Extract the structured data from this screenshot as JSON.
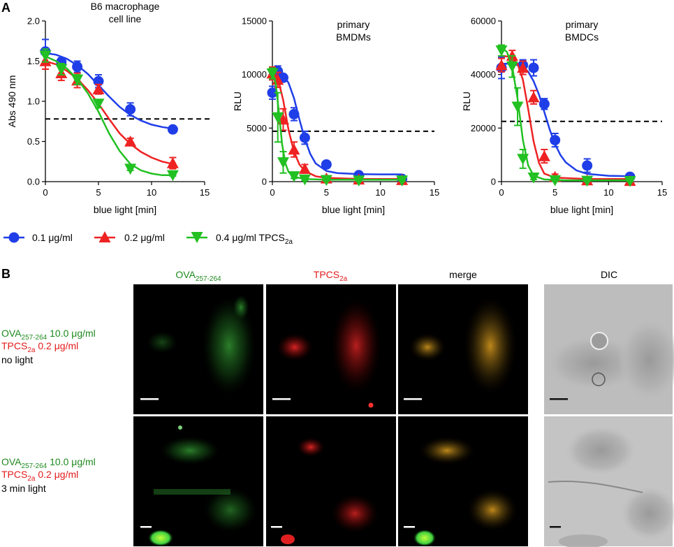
{
  "panel_a_letter": "A",
  "panel_b_letter": "B",
  "chart_data": [
    {
      "type": "line",
      "title": [
        "B6 macrophage",
        "cell line"
      ],
      "xlabel": "blue light [min]",
      "ylabel": "Abs 490 nm",
      "xlim": [
        0,
        15
      ],
      "ylim": [
        0,
        2.0
      ],
      "xticks": [
        "0",
        "5",
        "10",
        "15"
      ],
      "yticks": [
        "0.0",
        "0.5",
        "1.0",
        "1.5",
        "2.0"
      ],
      "threshold": 0.78,
      "series": [
        {
          "key": "c01",
          "points": [
            [
              0,
              1.62,
              0.15
            ],
            [
              1.5,
              1.49,
              0.05
            ],
            [
              3,
              1.43,
              0.07
            ],
            [
              5,
              1.25,
              0.08
            ],
            [
              8,
              0.9,
              0.08
            ],
            [
              12,
              0.65,
              0.04
            ]
          ],
          "curve": [
            [
              0,
              1.6
            ],
            [
              1,
              1.58
            ],
            [
              2,
              1.53
            ],
            [
              3,
              1.45
            ],
            [
              4,
              1.34
            ],
            [
              5,
              1.2
            ],
            [
              6,
              1.06
            ],
            [
              7,
              0.93
            ],
            [
              8,
              0.83
            ],
            [
              9,
              0.76
            ],
            [
              10,
              0.71
            ],
            [
              11,
              0.68
            ],
            [
              12,
              0.66
            ]
          ]
        },
        {
          "key": "c02",
          "points": [
            [
              0,
              1.5,
              0.1
            ],
            [
              1.5,
              1.35,
              0.09
            ],
            [
              3,
              1.26,
              0.09
            ],
            [
              5,
              1.15,
              0.06
            ],
            [
              8,
              0.5,
              0.04
            ],
            [
              12,
              0.23,
              0.07
            ]
          ],
          "curve": [
            [
              0,
              1.5
            ],
            [
              1,
              1.46
            ],
            [
              2,
              1.38
            ],
            [
              3,
              1.28
            ],
            [
              4,
              1.14
            ],
            [
              5,
              0.97
            ],
            [
              6,
              0.78
            ],
            [
              7,
              0.6
            ],
            [
              8,
              0.47
            ],
            [
              9,
              0.37
            ],
            [
              10,
              0.3
            ],
            [
              11,
              0.25
            ],
            [
              12,
              0.22
            ]
          ]
        },
        {
          "key": "c04",
          "points": [
            [
              0,
              1.57,
              0.08
            ],
            [
              1.5,
              1.4,
              0.07
            ],
            [
              3,
              1.27,
              0.06
            ],
            [
              5,
              0.97,
              0.05
            ],
            [
              8,
              0.16,
              0.02
            ],
            [
              12,
              0.08,
              0.01
            ]
          ],
          "curve": [
            [
              0,
              1.56
            ],
            [
              1,
              1.5
            ],
            [
              2,
              1.41
            ],
            [
              3,
              1.28
            ],
            [
              4,
              1.1
            ],
            [
              5,
              0.87
            ],
            [
              6,
              0.6
            ],
            [
              7,
              0.38
            ],
            [
              8,
              0.22
            ],
            [
              9,
              0.14
            ],
            [
              10,
              0.1
            ],
            [
              11,
              0.08
            ],
            [
              12,
              0.08
            ]
          ]
        }
      ]
    },
    {
      "type": "line",
      "title": [
        "primary",
        "BMDMs"
      ],
      "xlabel": "blue light [min]",
      "ylabel": "RLU",
      "xlim": [
        0,
        15
      ],
      "ylim": [
        0,
        15000
      ],
      "xticks": [
        "0",
        "5",
        "10",
        "15"
      ],
      "yticks": [
        "0",
        "5000",
        "10000",
        "15000"
      ],
      "threshold": 4700,
      "series": [
        {
          "key": "c01",
          "points": [
            [
              0,
              8300,
              600
            ],
            [
              0.5,
              10300,
              500
            ],
            [
              1,
              9700,
              300
            ],
            [
              2,
              6300,
              600
            ],
            [
              3,
              4100,
              600
            ],
            [
              5,
              1600,
              300
            ],
            [
              8,
              600,
              200
            ],
            [
              12,
              250,
              100
            ]
          ],
          "curve": [
            [
              0,
              10400
            ],
            [
              1,
              10000
            ],
            [
              1.5,
              9200
            ],
            [
              2,
              7800
            ],
            [
              2.5,
              5800
            ],
            [
              3,
              4000
            ],
            [
              3.5,
              2600
            ],
            [
              4,
              1700
            ],
            [
              5,
              1000
            ],
            [
              6,
              800
            ],
            [
              8,
              700
            ],
            [
              10,
              680
            ],
            [
              12,
              680
            ]
          ]
        },
        {
          "key": "c02",
          "points": [
            [
              0,
              10100,
              600
            ],
            [
              0.5,
              9500,
              700
            ],
            [
              1,
              5800,
              1000
            ],
            [
              2,
              3000,
              700
            ],
            [
              3,
              1200,
              400
            ],
            [
              5,
              300,
              100
            ],
            [
              8,
              200,
              100
            ],
            [
              12,
              150,
              100
            ]
          ],
          "curve": [
            [
              0,
              10100
            ],
            [
              0.5,
              9700
            ],
            [
              1,
              7600
            ],
            [
              1.5,
              4800
            ],
            [
              2,
              2800
            ],
            [
              2.5,
              1600
            ],
            [
              3,
              1000
            ],
            [
              4,
              500
            ],
            [
              5,
              350
            ],
            [
              8,
              250
            ],
            [
              12,
              250
            ]
          ]
        },
        {
          "key": "c04",
          "points": [
            [
              0,
              10100,
              500
            ],
            [
              0.5,
              6000,
              2300
            ],
            [
              1,
              1800,
              1000
            ],
            [
              2,
              500,
              200
            ],
            [
              3,
              200,
              100
            ],
            [
              5,
              150,
              100
            ],
            [
              8,
              100,
              50
            ],
            [
              12,
              100,
              50
            ]
          ],
          "curve": [
            [
              0,
              10200
            ],
            [
              0.3,
              9200
            ],
            [
              0.6,
              6500
            ],
            [
              0.9,
              3500
            ],
            [
              1.2,
              1700
            ],
            [
              1.5,
              900
            ],
            [
              2,
              450
            ],
            [
              3,
              250
            ],
            [
              5,
              180
            ],
            [
              12,
              180
            ]
          ]
        }
      ]
    },
    {
      "type": "line",
      "title": [
        "primary",
        "BMDCs"
      ],
      "xlabel": "blue light [min]",
      "ylabel": "RLU",
      "xlim": [
        0,
        15
      ],
      "ylim": [
        0,
        60000
      ],
      "xticks": [
        "0",
        "5",
        "10",
        "15"
      ],
      "yticks": [
        "0",
        "20000",
        "40000",
        "60000"
      ],
      "threshold": 22500,
      "series": [
        {
          "key": "c01",
          "points": [
            [
              0,
              42500,
              4000
            ],
            [
              2,
              43500,
              2000
            ],
            [
              3,
              42500,
              3000
            ],
            [
              4,
              29000,
              2000
            ],
            [
              5,
              15500,
              2500
            ],
            [
              8,
              6000,
              2500
            ],
            [
              12,
              1800,
              500
            ]
          ],
          "curve": [
            [
              0,
              44000
            ],
            [
              1,
              44000
            ],
            [
              2,
              43000
            ],
            [
              2.5,
              41000
            ],
            [
              3,
              37500
            ],
            [
              3.5,
              32500
            ],
            [
              4,
              26000
            ],
            [
              4.5,
              19500
            ],
            [
              5,
              14000
            ],
            [
              5.5,
              10000
            ],
            [
              6,
              7200
            ],
            [
              7,
              4200
            ],
            [
              8,
              2900
            ],
            [
              10,
              2200
            ],
            [
              12,
              2000
            ]
          ]
        },
        {
          "key": "c02",
          "points": [
            [
              0,
              43500,
              2500
            ],
            [
              1,
              47000,
              2000
            ],
            [
              2,
              42500,
              2500
            ],
            [
              3,
              31500,
              2500
            ],
            [
              4,
              9500,
              2500
            ],
            [
              5,
              1800,
              1000
            ],
            [
              8,
              500,
              300
            ],
            [
              12,
              300,
              200
            ]
          ],
          "curve": [
            [
              0,
              47000
            ],
            [
              1,
              46500
            ],
            [
              1.5,
              44000
            ],
            [
              2,
              38000
            ],
            [
              2.5,
              27000
            ],
            [
              3,
              15000
            ],
            [
              3.5,
              7000
            ],
            [
              4,
              3000
            ],
            [
              5,
              1500
            ],
            [
              8,
              1000
            ],
            [
              12,
              1000
            ]
          ]
        },
        {
          "key": "c04",
          "points": [
            [
              0,
              49000,
              2000
            ],
            [
              1,
              43000,
              4000
            ],
            [
              1.5,
              28000,
              7000
            ],
            [
              2,
              8500,
              3500
            ],
            [
              3,
              1500,
              700
            ],
            [
              5,
              500,
              300
            ],
            [
              8,
              300,
              200
            ],
            [
              12,
              200,
              100
            ]
          ],
          "curve": [
            [
              0,
              50000
            ],
            [
              0.5,
              48500
            ],
            [
              1,
              43000
            ],
            [
              1.5,
              31000
            ],
            [
              2,
              15500
            ],
            [
              2.5,
              6000
            ],
            [
              3,
              2200
            ],
            [
              4,
              800
            ],
            [
              6,
              500
            ],
            [
              12,
              500
            ]
          ]
        }
      ]
    }
  ],
  "legend": [
    {
      "key": "c01",
      "marker": "circle",
      "label": "0.1 μg/ml"
    },
    {
      "key": "c02",
      "marker": "triangle-up",
      "label": "0.2 μg/ml"
    },
    {
      "key": "c04",
      "marker": "triangle-down",
      "label": "0.4 μg/ml TPCS",
      "label_sub": "2a"
    }
  ],
  "colors": {
    "c01": "#1f3ee8",
    "c02": "#ee2222",
    "c04": "#22c022",
    "ova": "#1f8a1f",
    "tpcs": "#e41a1a",
    "threshold": "#000000"
  },
  "panel_b": {
    "col_headers": [
      {
        "text": "OVA",
        "sub": "257-264",
        "color": "ova"
      },
      {
        "text": "TPCS",
        "sub": "2a",
        "color": "tpcs"
      },
      {
        "text": "merge",
        "sub": "",
        "color": "black"
      },
      {
        "text": "DIC",
        "sub": "",
        "color": "black"
      }
    ],
    "row_labels": [
      {
        "ova": "OVA",
        "ova_sub": "257-264",
        "ova_conc": " 10.0 μg/ml",
        "tpcs": "TPCS",
        "tpcs_sub": "2a",
        "tpcs_conc": " 0.2 μg/ml",
        "light": "no light"
      },
      {
        "ova": "OVA",
        "ova_sub": "257-264",
        "ova_conc": " 10.0 μg/ml",
        "tpcs": "TPCS",
        "tpcs_sub": "2a",
        "tpcs_conc": " 0.2 μg/ml",
        "light": "3 min light"
      }
    ]
  }
}
